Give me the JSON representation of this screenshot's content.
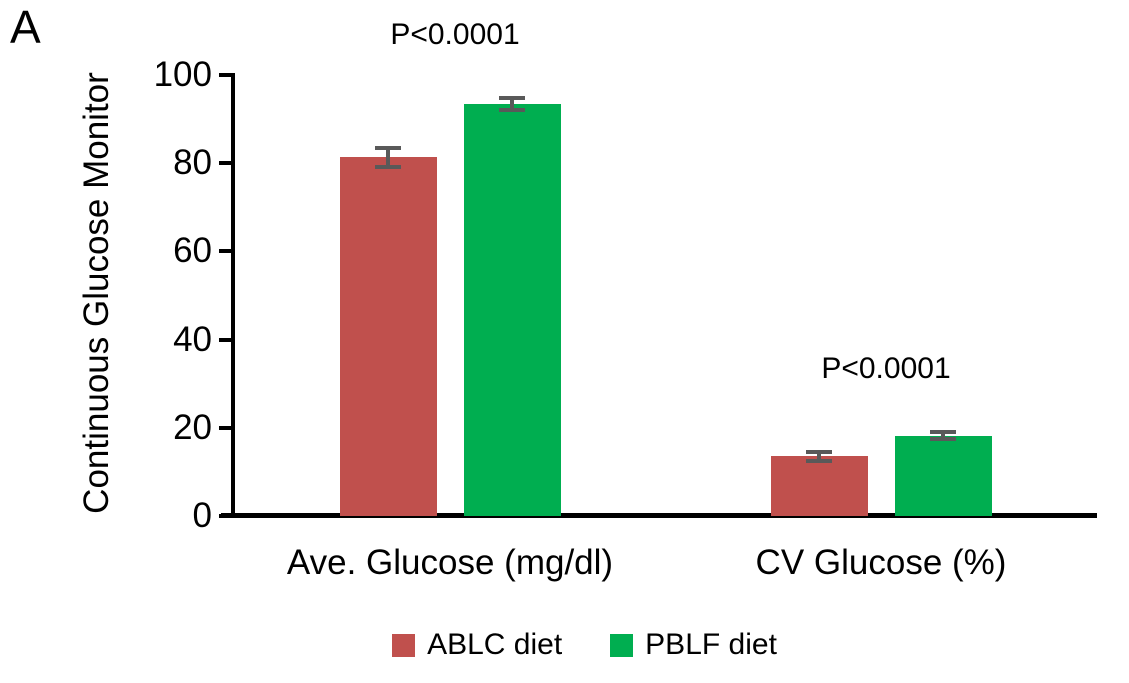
{
  "chart_data": {
    "type": "bar",
    "panel_label": "A",
    "title": "",
    "ylabel": "Continuous Glucose Monitor",
    "xlabel": "",
    "categories": [
      "Ave. Glucose (mg/dl)",
      "CV Glucose (%)"
    ],
    "series": [
      {
        "name": "ABLC diet",
        "color": "#C0504D",
        "values": [
          81.3,
          13.5
        ],
        "errors": [
          2.2,
          1.0
        ]
      },
      {
        "name": "PBLF diet",
        "color": "#00AE50",
        "values": [
          93.4,
          18.2
        ],
        "errors": [
          1.3,
          0.8
        ]
      }
    ],
    "annotations": [
      {
        "group": 0,
        "text": "P<0.0001"
      },
      {
        "group": 1,
        "text": "P<0.0001"
      }
    ],
    "yticks": [
      0,
      20,
      40,
      60,
      80,
      100
    ],
    "ylim": [
      0,
      100
    ],
    "grid": false,
    "legend_position": "bottom",
    "error_bar_color": "#595959",
    "axis_color": "#000000"
  }
}
